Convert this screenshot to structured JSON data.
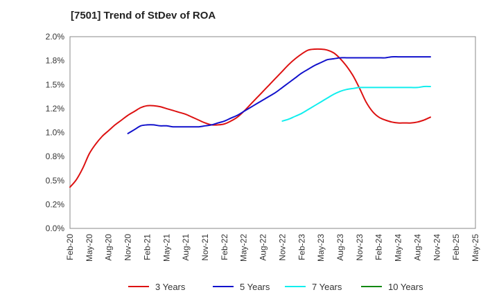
{
  "chart_data": {
    "type": "line",
    "title": "[7501]  Trend of StDev of ROA",
    "xlabel": "",
    "ylabel": "",
    "x_ticks": [
      "Feb-20",
      "May-20",
      "Aug-20",
      "Nov-20",
      "Feb-21",
      "May-21",
      "Aug-21",
      "Nov-21",
      "Feb-22",
      "May-22",
      "Aug-22",
      "Nov-22",
      "Feb-23",
      "May-23",
      "Aug-23",
      "Nov-23",
      "Feb-24",
      "May-24",
      "Aug-24",
      "Nov-24",
      "Feb-25",
      "May-25"
    ],
    "y_ticks": [
      "0.0%",
      "0.2%",
      "0.5%",
      "0.8%",
      "1.0%",
      "1.2%",
      "1.5%",
      "1.8%",
      "2.0%"
    ],
    "ylim": [
      0,
      2.0
    ],
    "grid": true,
    "legend_position": "bottom",
    "series": [
      {
        "name": "3 Years",
        "color": "#dd1111",
        "points": [
          {
            "x": "Feb-20",
            "y": 0.43
          },
          {
            "x": "Mar-20",
            "y": 0.51
          },
          {
            "x": "Apr-20",
            "y": 0.63
          },
          {
            "x": "May-20",
            "y": 0.78
          },
          {
            "x": "Jun-20",
            "y": 0.88
          },
          {
            "x": "Jul-20",
            "y": 0.96
          },
          {
            "x": "Aug-20",
            "y": 1.02
          },
          {
            "x": "Sep-20",
            "y": 1.08
          },
          {
            "x": "Oct-20",
            "y": 1.13
          },
          {
            "x": "Nov-20",
            "y": 1.18
          },
          {
            "x": "Dec-20",
            "y": 1.22
          },
          {
            "x": "Jan-21",
            "y": 1.26
          },
          {
            "x": "Feb-21",
            "y": 1.28
          },
          {
            "x": "Mar-21",
            "y": 1.28
          },
          {
            "x": "Apr-21",
            "y": 1.27
          },
          {
            "x": "May-21",
            "y": 1.25
          },
          {
            "x": "Jun-21",
            "y": 1.23
          },
          {
            "x": "Jul-21",
            "y": 1.21
          },
          {
            "x": "Aug-21",
            "y": 1.19
          },
          {
            "x": "Sep-21",
            "y": 1.16
          },
          {
            "x": "Oct-21",
            "y": 1.13
          },
          {
            "x": "Nov-21",
            "y": 1.1
          },
          {
            "x": "Dec-21",
            "y": 1.08
          },
          {
            "x": "Jan-22",
            "y": 1.08
          },
          {
            "x": "Feb-22",
            "y": 1.09
          },
          {
            "x": "Mar-22",
            "y": 1.12
          },
          {
            "x": "Apr-22",
            "y": 1.16
          },
          {
            "x": "May-22",
            "y": 1.22
          },
          {
            "x": "Jun-22",
            "y": 1.29
          },
          {
            "x": "Jul-22",
            "y": 1.36
          },
          {
            "x": "Aug-22",
            "y": 1.43
          },
          {
            "x": "Sep-22",
            "y": 1.5
          },
          {
            "x": "Oct-22",
            "y": 1.57
          },
          {
            "x": "Nov-22",
            "y": 1.64
          },
          {
            "x": "Dec-22",
            "y": 1.71
          },
          {
            "x": "Jan-23",
            "y": 1.77
          },
          {
            "x": "Feb-23",
            "y": 1.82
          },
          {
            "x": "Mar-23",
            "y": 1.86
          },
          {
            "x": "Apr-23",
            "y": 1.87
          },
          {
            "x": "May-23",
            "y": 1.87
          },
          {
            "x": "Jun-23",
            "y": 1.86
          },
          {
            "x": "Jul-23",
            "y": 1.83
          },
          {
            "x": "Aug-23",
            "y": 1.77
          },
          {
            "x": "Sep-23",
            "y": 1.69
          },
          {
            "x": "Oct-23",
            "y": 1.59
          },
          {
            "x": "Nov-23",
            "y": 1.46
          },
          {
            "x": "Dec-23",
            "y": 1.32
          },
          {
            "x": "Jan-24",
            "y": 1.22
          },
          {
            "x": "Feb-24",
            "y": 1.16
          },
          {
            "x": "Mar-24",
            "y": 1.13
          },
          {
            "x": "Apr-24",
            "y": 1.11
          },
          {
            "x": "May-24",
            "y": 1.1
          },
          {
            "x": "Jun-24",
            "y": 1.1
          },
          {
            "x": "Jul-24",
            "y": 1.1
          },
          {
            "x": "Aug-24",
            "y": 1.11
          },
          {
            "x": "Sep-24",
            "y": 1.13
          },
          {
            "x": "Oct-24",
            "y": 1.16
          }
        ]
      },
      {
        "name": "5 Years",
        "color": "#1111cc",
        "points": [
          {
            "x": "Nov-20",
            "y": 0.99
          },
          {
            "x": "Dec-20",
            "y": 1.03
          },
          {
            "x": "Jan-21",
            "y": 1.07
          },
          {
            "x": "Feb-21",
            "y": 1.08
          },
          {
            "x": "Mar-21",
            "y": 1.08
          },
          {
            "x": "Apr-21",
            "y": 1.07
          },
          {
            "x": "May-21",
            "y": 1.07
          },
          {
            "x": "Jun-21",
            "y": 1.06
          },
          {
            "x": "Jul-21",
            "y": 1.06
          },
          {
            "x": "Aug-21",
            "y": 1.06
          },
          {
            "x": "Sep-21",
            "y": 1.06
          },
          {
            "x": "Oct-21",
            "y": 1.06
          },
          {
            "x": "Nov-21",
            "y": 1.07
          },
          {
            "x": "Dec-21",
            "y": 1.08
          },
          {
            "x": "Jan-22",
            "y": 1.1
          },
          {
            "x": "Feb-22",
            "y": 1.12
          },
          {
            "x": "Mar-22",
            "y": 1.15
          },
          {
            "x": "Apr-22",
            "y": 1.18
          },
          {
            "x": "May-22",
            "y": 1.22
          },
          {
            "x": "Jun-22",
            "y": 1.26
          },
          {
            "x": "Jul-22",
            "y": 1.3
          },
          {
            "x": "Aug-22",
            "y": 1.34
          },
          {
            "x": "Sep-22",
            "y": 1.38
          },
          {
            "x": "Oct-22",
            "y": 1.42
          },
          {
            "x": "Nov-22",
            "y": 1.47
          },
          {
            "x": "Dec-22",
            "y": 1.52
          },
          {
            "x": "Jan-23",
            "y": 1.57
          },
          {
            "x": "Feb-23",
            "y": 1.62
          },
          {
            "x": "Mar-23",
            "y": 1.66
          },
          {
            "x": "Apr-23",
            "y": 1.7
          },
          {
            "x": "May-23",
            "y": 1.73
          },
          {
            "x": "Jun-23",
            "y": 1.76
          },
          {
            "x": "Jul-23",
            "y": 1.77
          },
          {
            "x": "Aug-23",
            "y": 1.78
          },
          {
            "x": "Sep-23",
            "y": 1.78
          },
          {
            "x": "Oct-23",
            "y": 1.78
          },
          {
            "x": "Nov-23",
            "y": 1.78
          },
          {
            "x": "Dec-23",
            "y": 1.78
          },
          {
            "x": "Jan-24",
            "y": 1.78
          },
          {
            "x": "Feb-24",
            "y": 1.78
          },
          {
            "x": "Mar-24",
            "y": 1.78
          },
          {
            "x": "Apr-24",
            "y": 1.79
          },
          {
            "x": "May-24",
            "y": 1.79
          },
          {
            "x": "Jun-24",
            "y": 1.79
          },
          {
            "x": "Jul-24",
            "y": 1.79
          },
          {
            "x": "Aug-24",
            "y": 1.79
          },
          {
            "x": "Sep-24",
            "y": 1.79
          },
          {
            "x": "Oct-24",
            "y": 1.79
          }
        ]
      },
      {
        "name": "7 Years",
        "color": "#11eeee",
        "points": [
          {
            "x": "Nov-22",
            "y": 1.12
          },
          {
            "x": "Dec-22",
            "y": 1.14
          },
          {
            "x": "Jan-23",
            "y": 1.17
          },
          {
            "x": "Feb-23",
            "y": 1.2
          },
          {
            "x": "Mar-23",
            "y": 1.24
          },
          {
            "x": "Apr-23",
            "y": 1.28
          },
          {
            "x": "May-23",
            "y": 1.32
          },
          {
            "x": "Jun-23",
            "y": 1.36
          },
          {
            "x": "Jul-23",
            "y": 1.4
          },
          {
            "x": "Aug-23",
            "y": 1.43
          },
          {
            "x": "Sep-23",
            "y": 1.45
          },
          {
            "x": "Oct-23",
            "y": 1.46
          },
          {
            "x": "Nov-23",
            "y": 1.47
          },
          {
            "x": "Dec-23",
            "y": 1.47
          },
          {
            "x": "Jan-24",
            "y": 1.47
          },
          {
            "x": "Feb-24",
            "y": 1.47
          },
          {
            "x": "Mar-24",
            "y": 1.47
          },
          {
            "x": "Apr-24",
            "y": 1.47
          },
          {
            "x": "May-24",
            "y": 1.47
          },
          {
            "x": "Jun-24",
            "y": 1.47
          },
          {
            "x": "Jul-24",
            "y": 1.47
          },
          {
            "x": "Aug-24",
            "y": 1.47
          },
          {
            "x": "Sep-24",
            "y": 1.48
          },
          {
            "x": "Oct-24",
            "y": 1.48
          }
        ]
      },
      {
        "name": "10 Years",
        "color": "#118811",
        "points": []
      }
    ]
  }
}
